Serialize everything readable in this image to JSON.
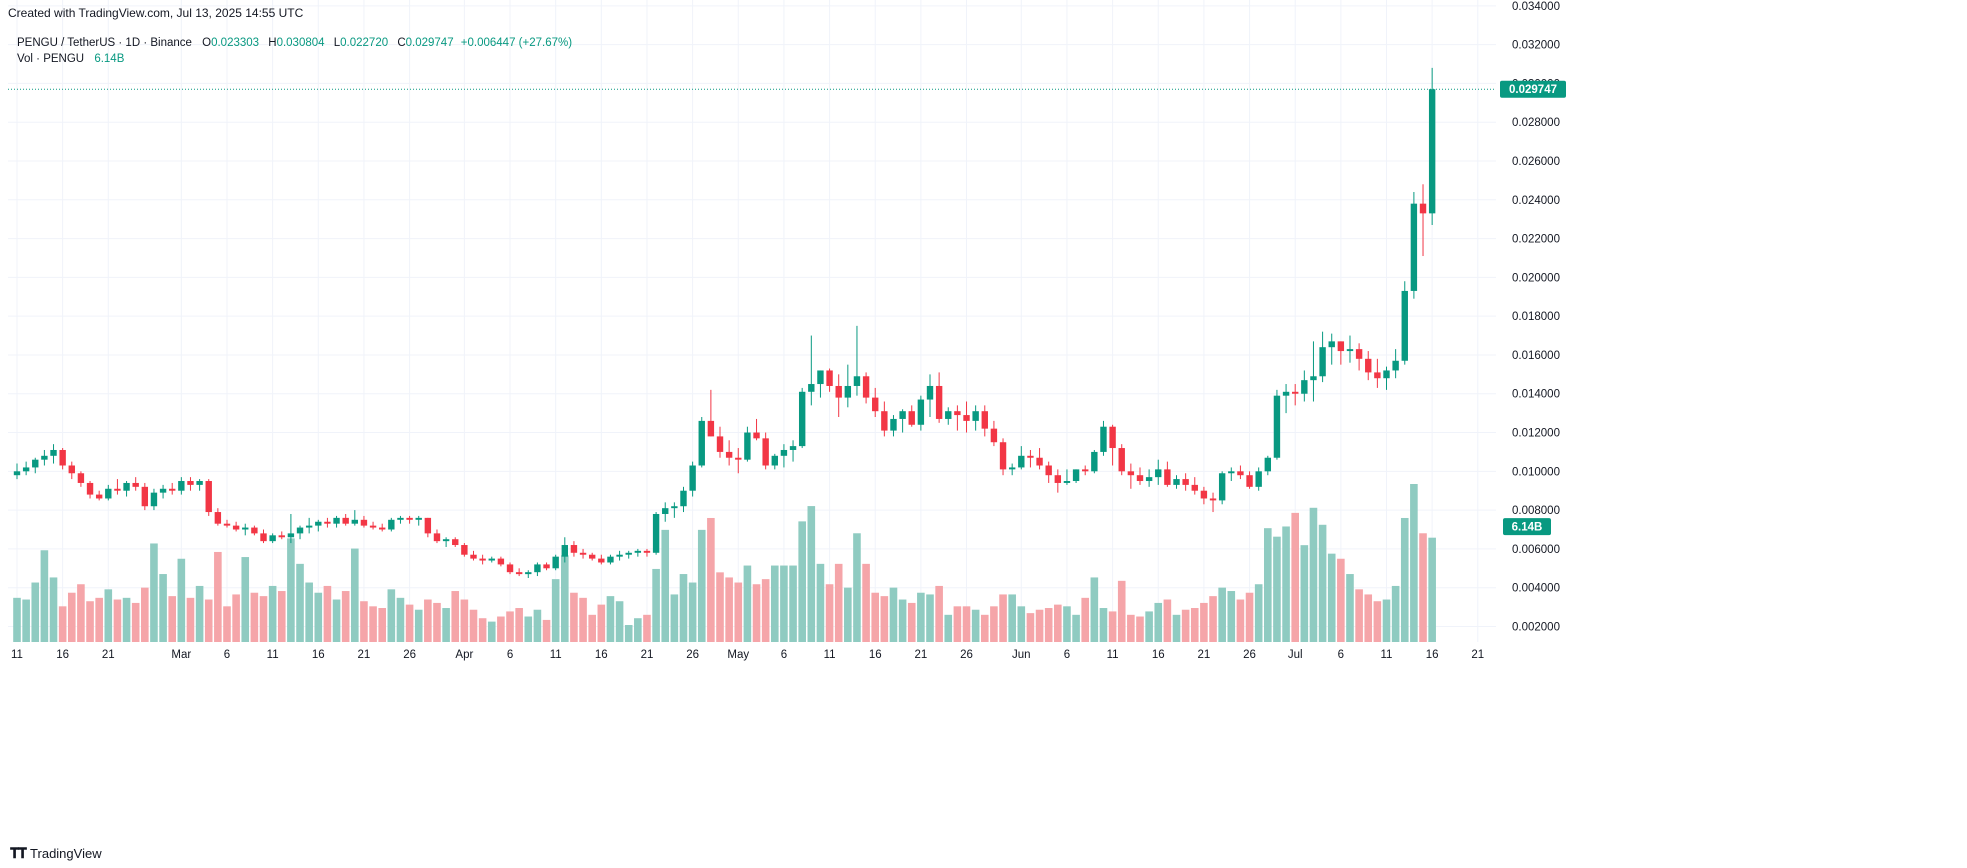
{
  "header": {
    "created_text": "Created with TradingView.com, Jul 13, 2025 14:55 UTC"
  },
  "legend": {
    "symbol_line": "PENGU / TetherUS · 1D · Binance",
    "o_label": "O",
    "o_value": "0.023303",
    "h_label": "H",
    "h_value": "0.030804",
    "l_label": "L",
    "l_value": "0.022720",
    "c_label": "C",
    "c_value": "0.029747",
    "change": "+0.006447 (+27.67%)",
    "vol_label": "Vol · PENGU",
    "vol_value": "6.14B"
  },
  "price_label": "0.029747",
  "volume_label": "6.14B",
  "footer": {
    "logo_text": "TradingView"
  },
  "colors": {
    "up": "#089981",
    "down": "#f23645",
    "up_vol": "#8fcbc1",
    "down_vol": "#f5a5a9",
    "grid": "#f0f3fa"
  },
  "chart_data": {
    "type": "candlestick",
    "symbol": "PENGU / TetherUS",
    "interval": "1D",
    "exchange": "Binance",
    "y_axis": {
      "min": 0.0012,
      "max": 0.0343,
      "ticks": [
        "0.002000",
        "0.004000",
        "0.006000",
        "0.008000",
        "0.010000",
        "0.012000",
        "0.014000",
        "0.016000",
        "0.018000",
        "0.020000",
        "0.022000",
        "0.024000",
        "0.026000",
        "0.028000",
        "0.030000",
        "0.032000",
        "0.034000"
      ]
    },
    "volume_scale_max": 9.3,
    "x_axis": {
      "ticks": [
        {
          "label": "11",
          "index": 0
        },
        {
          "label": "16",
          "index": 5
        },
        {
          "label": "21",
          "index": 10
        },
        {
          "label": "Mar",
          "index": 18
        },
        {
          "label": "6",
          "index": 23
        },
        {
          "label": "11",
          "index": 28
        },
        {
          "label": "16",
          "index": 33
        },
        {
          "label": "21",
          "index": 38
        },
        {
          "label": "26",
          "index": 43
        },
        {
          "label": "Apr",
          "index": 49
        },
        {
          "label": "6",
          "index": 54
        },
        {
          "label": "11",
          "index": 59
        },
        {
          "label": "16",
          "index": 64
        },
        {
          "label": "21",
          "index": 69
        },
        {
          "label": "26",
          "index": 74
        },
        {
          "label": "May",
          "index": 79
        },
        {
          "label": "6",
          "index": 84
        },
        {
          "label": "11",
          "index": 89
        },
        {
          "label": "16",
          "index": 94
        },
        {
          "label": "21",
          "index": 99
        },
        {
          "label": "26",
          "index": 104
        },
        {
          "label": "Jun",
          "index": 110
        },
        {
          "label": "6",
          "index": 115
        },
        {
          "label": "11",
          "index": 120
        },
        {
          "label": "16",
          "index": 125
        },
        {
          "label": "21",
          "index": 130
        },
        {
          "label": "26",
          "index": 135
        },
        {
          "label": "Jul",
          "index": 140
        },
        {
          "label": "6",
          "index": 145
        },
        {
          "label": "11",
          "index": 150
        },
        {
          "label": "16",
          "index": 155
        },
        {
          "label": "21",
          "index": 160
        }
      ]
    },
    "candles": [
      [
        0.0098,
        0.0104,
        0.0096,
        0.01,
        2.6
      ],
      [
        0.01,
        0.0105,
        0.0098,
        0.0102,
        2.5
      ],
      [
        0.0102,
        0.0107,
        0.0099,
        0.0106,
        3.5
      ],
      [
        0.0106,
        0.0111,
        0.0103,
        0.0108,
        5.4
      ],
      [
        0.0108,
        0.0114,
        0.0104,
        0.0111,
        3.8
      ],
      [
        0.0111,
        0.0112,
        0.0101,
        0.0103,
        2.1
      ],
      [
        0.0103,
        0.0105,
        0.0096,
        0.0099,
        2.9
      ],
      [
        0.0099,
        0.01,
        0.0092,
        0.0094,
        3.4
      ],
      [
        0.0094,
        0.0095,
        0.0086,
        0.0088,
        2.4
      ],
      [
        0.0088,
        0.009,
        0.0085,
        0.0086,
        2.6
      ],
      [
        0.0086,
        0.0093,
        0.0085,
        0.0091,
        3.1
      ],
      [
        0.0091,
        0.0096,
        0.0088,
        0.009,
        2.5
      ],
      [
        0.009,
        0.0095,
        0.0087,
        0.0094,
        2.6
      ],
      [
        0.0094,
        0.0097,
        0.009,
        0.0092,
        2.3
      ],
      [
        0.0092,
        0.0094,
        0.008,
        0.0082,
        3.2
      ],
      [
        0.0082,
        0.0091,
        0.008,
        0.0089,
        5.8
      ],
      [
        0.0089,
        0.0093,
        0.0086,
        0.0091,
        4.0
      ],
      [
        0.0091,
        0.0094,
        0.0088,
        0.009,
        2.7
      ],
      [
        0.009,
        0.0097,
        0.0088,
        0.0095,
        4.9
      ],
      [
        0.0095,
        0.0097,
        0.009,
        0.0093,
        2.6
      ],
      [
        0.0093,
        0.0096,
        0.009,
        0.0095,
        3.3
      ],
      [
        0.0095,
        0.0096,
        0.0077,
        0.0079,
        2.5
      ],
      [
        0.0079,
        0.0081,
        0.0072,
        0.0073,
        5.3
      ],
      [
        0.0073,
        0.0075,
        0.0071,
        0.0072,
        2.1
      ],
      [
        0.0072,
        0.0074,
        0.0069,
        0.007,
        2.8
      ],
      [
        0.007,
        0.0073,
        0.0067,
        0.0071,
        5.0
      ],
      [
        0.0071,
        0.0072,
        0.0067,
        0.0068,
        2.9
      ],
      [
        0.0068,
        0.007,
        0.0063,
        0.0064,
        2.7
      ],
      [
        0.0064,
        0.0068,
        0.0063,
        0.0067,
        3.3
      ],
      [
        0.0067,
        0.0069,
        0.0065,
        0.0066,
        3.0
      ],
      [
        0.0066,
        0.0078,
        0.0063,
        0.0068,
        6.1
      ],
      [
        0.0068,
        0.0072,
        0.0065,
        0.0071,
        4.6
      ],
      [
        0.0071,
        0.0076,
        0.0068,
        0.0072,
        3.5
      ],
      [
        0.0072,
        0.0075,
        0.0069,
        0.0074,
        2.9
      ],
      [
        0.0074,
        0.0076,
        0.0071,
        0.0073,
        3.3
      ],
      [
        0.0073,
        0.0077,
        0.0071,
        0.0076,
        2.5
      ],
      [
        0.0076,
        0.0078,
        0.0072,
        0.0073,
        3.0
      ],
      [
        0.0073,
        0.008,
        0.0072,
        0.0075,
        5.5
      ],
      [
        0.0075,
        0.0077,
        0.0071,
        0.0072,
        2.4
      ],
      [
        0.0072,
        0.0074,
        0.007,
        0.0071,
        2.1
      ],
      [
        0.0071,
        0.0073,
        0.0069,
        0.007,
        2.0
      ],
      [
        0.007,
        0.0076,
        0.0069,
        0.0075,
        3.1
      ],
      [
        0.0075,
        0.0077,
        0.0073,
        0.0076,
        2.6
      ],
      [
        0.0076,
        0.0077,
        0.0073,
        0.0075,
        2.2
      ],
      [
        0.0075,
        0.0077,
        0.0072,
        0.0076,
        1.9
      ],
      [
        0.0076,
        0.0076,
        0.0066,
        0.0068,
        2.5
      ],
      [
        0.0068,
        0.007,
        0.0063,
        0.0064,
        2.3
      ],
      [
        0.0064,
        0.0066,
        0.0061,
        0.0065,
        2.0
      ],
      [
        0.0065,
        0.0066,
        0.0061,
        0.0062,
        3.0
      ],
      [
        0.0062,
        0.0063,
        0.0056,
        0.0057,
        2.5
      ],
      [
        0.0057,
        0.0059,
        0.0054,
        0.0055,
        1.9
      ],
      [
        0.0055,
        0.0057,
        0.0052,
        0.0054,
        1.4
      ],
      [
        0.0054,
        0.0056,
        0.0053,
        0.0055,
        1.2
      ],
      [
        0.0055,
        0.0056,
        0.0051,
        0.0052,
        1.5
      ],
      [
        0.0052,
        0.0053,
        0.0047,
        0.0048,
        1.8
      ],
      [
        0.0048,
        0.005,
        0.0046,
        0.0047,
        2.0
      ],
      [
        0.0047,
        0.0049,
        0.0045,
        0.0048,
        1.5
      ],
      [
        0.0048,
        0.0053,
        0.0046,
        0.0052,
        1.9
      ],
      [
        0.0052,
        0.0053,
        0.0049,
        0.005,
        1.3
      ],
      [
        0.005,
        0.0057,
        0.0049,
        0.0056,
        3.7
      ],
      [
        0.0056,
        0.0066,
        0.0053,
        0.0062,
        5.1
      ],
      [
        0.0062,
        0.0064,
        0.0056,
        0.0058,
        2.9
      ],
      [
        0.0058,
        0.006,
        0.0055,
        0.0057,
        2.6
      ],
      [
        0.0057,
        0.0058,
        0.0054,
        0.0055,
        1.6
      ],
      [
        0.0055,
        0.0057,
        0.0052,
        0.0053,
        2.2
      ],
      [
        0.0053,
        0.0057,
        0.0052,
        0.0056,
        2.7
      ],
      [
        0.0056,
        0.0059,
        0.0054,
        0.0057,
        2.4
      ],
      [
        0.0057,
        0.0059,
        0.0055,
        0.0058,
        1.0
      ],
      [
        0.0058,
        0.006,
        0.0056,
        0.0059,
        1.4
      ],
      [
        0.0059,
        0.006,
        0.0056,
        0.0058,
        1.6
      ],
      [
        0.0058,
        0.0079,
        0.0057,
        0.0078,
        4.3
      ],
      [
        0.0078,
        0.0084,
        0.0074,
        0.0081,
        6.6
      ],
      [
        0.0081,
        0.0084,
        0.0076,
        0.0082,
        2.8
      ],
      [
        0.0082,
        0.0092,
        0.0079,
        0.009,
        4.0
      ],
      [
        0.009,
        0.0105,
        0.0087,
        0.0103,
        3.5
      ],
      [
        0.0103,
        0.0128,
        0.0102,
        0.0126,
        6.6
      ],
      [
        0.0126,
        0.0142,
        0.0118,
        0.0118,
        7.3
      ],
      [
        0.0118,
        0.0123,
        0.0107,
        0.011,
        4.1
      ],
      [
        0.011,
        0.0116,
        0.0103,
        0.0107,
        3.8
      ],
      [
        0.0107,
        0.0112,
        0.0099,
        0.0106,
        3.5
      ],
      [
        0.0106,
        0.0123,
        0.0105,
        0.012,
        4.5
      ],
      [
        0.012,
        0.0127,
        0.0116,
        0.0117,
        3.4
      ],
      [
        0.0117,
        0.012,
        0.0101,
        0.0103,
        3.7
      ],
      [
        0.0103,
        0.0109,
        0.0101,
        0.0108,
        4.5
      ],
      [
        0.0108,
        0.0114,
        0.0102,
        0.0111,
        4.5
      ],
      [
        0.0111,
        0.0116,
        0.0105,
        0.0113,
        4.5
      ],
      [
        0.0113,
        0.0143,
        0.0112,
        0.0141,
        7.1
      ],
      [
        0.0141,
        0.017,
        0.0134,
        0.0145,
        8.0
      ],
      [
        0.0145,
        0.0152,
        0.0138,
        0.0152,
        4.6
      ],
      [
        0.0152,
        0.0153,
        0.0141,
        0.0144,
        3.4
      ],
      [
        0.0144,
        0.015,
        0.0128,
        0.0138,
        4.6
      ],
      [
        0.0138,
        0.0155,
        0.0133,
        0.0144,
        3.2
      ],
      [
        0.0144,
        0.0175,
        0.0139,
        0.0149,
        6.4
      ],
      [
        0.0149,
        0.0151,
        0.0135,
        0.0138,
        4.6
      ],
      [
        0.0138,
        0.0143,
        0.0128,
        0.0131,
        2.9
      ],
      [
        0.0131,
        0.0136,
        0.0118,
        0.0121,
        2.7
      ],
      [
        0.0121,
        0.0129,
        0.0118,
        0.0127,
        3.2
      ],
      [
        0.0127,
        0.0132,
        0.012,
        0.0131,
        2.5
      ],
      [
        0.0131,
        0.0134,
        0.0123,
        0.0124,
        2.3
      ],
      [
        0.0124,
        0.0139,
        0.0121,
        0.0137,
        2.9
      ],
      [
        0.0137,
        0.015,
        0.0128,
        0.0144,
        2.8
      ],
      [
        0.0144,
        0.0151,
        0.0125,
        0.0127,
        3.3
      ],
      [
        0.0127,
        0.0133,
        0.0124,
        0.0131,
        1.6
      ],
      [
        0.0131,
        0.0134,
        0.0121,
        0.0129,
        2.1
      ],
      [
        0.0129,
        0.0136,
        0.012,
        0.0126,
        2.1
      ],
      [
        0.0126,
        0.0134,
        0.0121,
        0.0131,
        1.9
      ],
      [
        0.0131,
        0.0134,
        0.0118,
        0.0122,
        1.6
      ],
      [
        0.0122,
        0.0126,
        0.0113,
        0.0115,
        2.1
      ],
      [
        0.0115,
        0.0117,
        0.0098,
        0.0101,
        2.8
      ],
      [
        0.0101,
        0.0104,
        0.0098,
        0.0102,
        2.8
      ],
      [
        0.0102,
        0.0113,
        0.0101,
        0.0108,
        2.1
      ],
      [
        0.0108,
        0.0111,
        0.0102,
        0.0107,
        1.7
      ],
      [
        0.0107,
        0.0112,
        0.0101,
        0.0103,
        1.9
      ],
      [
        0.0103,
        0.0105,
        0.0094,
        0.0098,
        2.0
      ],
      [
        0.0098,
        0.0101,
        0.0089,
        0.0094,
        2.2
      ],
      [
        0.0094,
        0.0101,
        0.0093,
        0.0095,
        2.1
      ],
      [
        0.0095,
        0.0101,
        0.0094,
        0.0101,
        1.6
      ],
      [
        0.0101,
        0.0103,
        0.0098,
        0.01,
        2.6
      ],
      [
        0.01,
        0.0111,
        0.0099,
        0.011,
        3.8
      ],
      [
        0.011,
        0.0126,
        0.0108,
        0.0123,
        2.0
      ],
      [
        0.0123,
        0.0124,
        0.0103,
        0.0112,
        1.8
      ],
      [
        0.0112,
        0.0114,
        0.0098,
        0.01,
        3.6
      ],
      [
        0.01,
        0.0104,
        0.0091,
        0.0098,
        1.6
      ],
      [
        0.0098,
        0.0102,
        0.0093,
        0.0095,
        1.5
      ],
      [
        0.0095,
        0.0101,
        0.0092,
        0.0097,
        1.8
      ],
      [
        0.0097,
        0.0106,
        0.0093,
        0.0101,
        2.3
      ],
      [
        0.0101,
        0.0105,
        0.0092,
        0.0093,
        2.5
      ],
      [
        0.0093,
        0.0098,
        0.0091,
        0.0096,
        1.6
      ],
      [
        0.0096,
        0.0099,
        0.009,
        0.0093,
        1.9
      ],
      [
        0.0093,
        0.0097,
        0.0088,
        0.009,
        2.0
      ],
      [
        0.009,
        0.0092,
        0.0083,
        0.0086,
        2.3
      ],
      [
        0.0086,
        0.0089,
        0.0079,
        0.0085,
        2.7
      ],
      [
        0.0085,
        0.01,
        0.0083,
        0.0099,
        3.2
      ],
      [
        0.0099,
        0.0102,
        0.0095,
        0.01,
        3.0
      ],
      [
        0.01,
        0.0103,
        0.0096,
        0.0098,
        2.5
      ],
      [
        0.0098,
        0.01,
        0.0091,
        0.0092,
        2.9
      ],
      [
        0.0092,
        0.0102,
        0.009,
        0.01,
        3.4
      ],
      [
        0.01,
        0.0108,
        0.0098,
        0.0107,
        6.7
      ],
      [
        0.0107,
        0.0142,
        0.0106,
        0.0139,
        6.2
      ],
      [
        0.0139,
        0.0145,
        0.013,
        0.0141,
        6.8
      ],
      [
        0.0141,
        0.0145,
        0.0134,
        0.014,
        7.6
      ],
      [
        0.014,
        0.0152,
        0.0136,
        0.0147,
        5.7
      ],
      [
        0.0147,
        0.0167,
        0.0136,
        0.0149,
        7.9
      ],
      [
        0.0149,
        0.0172,
        0.0146,
        0.0164,
        6.9
      ],
      [
        0.0164,
        0.0171,
        0.0155,
        0.0167,
        5.2
      ],
      [
        0.0167,
        0.0167,
        0.0155,
        0.0162,
        4.9
      ],
      [
        0.0162,
        0.017,
        0.0156,
        0.0163,
        4.0
      ],
      [
        0.0163,
        0.0166,
        0.0152,
        0.0158,
        3.1
      ],
      [
        0.0158,
        0.0162,
        0.0147,
        0.0151,
        2.8
      ],
      [
        0.0151,
        0.0158,
        0.0143,
        0.0148,
        2.4
      ],
      [
        0.0148,
        0.0154,
        0.0142,
        0.0152,
        2.5
      ],
      [
        0.0152,
        0.0163,
        0.0148,
        0.0157,
        3.3
      ],
      [
        0.0157,
        0.0198,
        0.0155,
        0.0193,
        7.3
      ],
      [
        0.0193,
        0.0244,
        0.0189,
        0.0238,
        9.3
      ],
      [
        0.0238,
        0.0248,
        0.0211,
        0.0233,
        6.4
      ],
      [
        0.0233,
        0.0308,
        0.0227,
        0.0297,
        6.14
      ]
    ]
  }
}
